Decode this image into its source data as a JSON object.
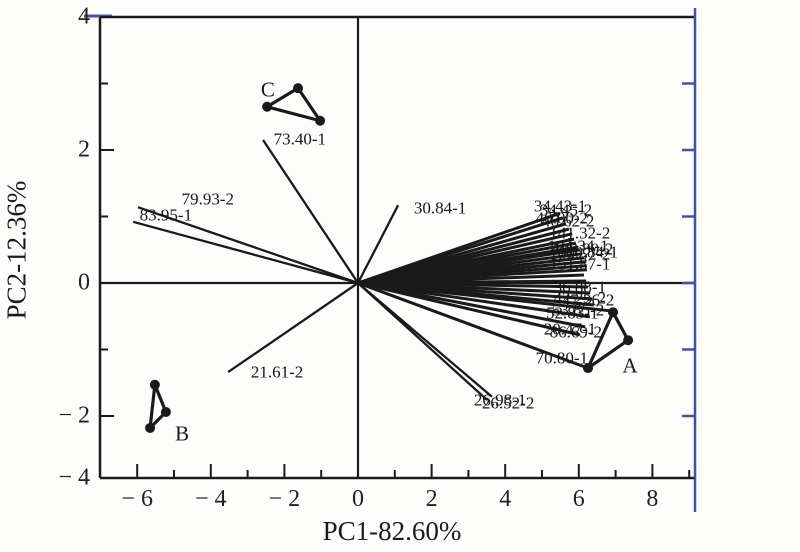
{
  "figure": {
    "colors": {
      "ink": "#1a1a1a",
      "accent_blue": "#3a55a4",
      "background": "#fdfdfc"
    },
    "axes": {
      "x": {
        "title": "PC1-82.60%",
        "ticks": [
          {
            "label": "− 6",
            "value": -6
          },
          {
            "label": "− 4",
            "value": -4
          },
          {
            "label": "− 2",
            "value": -2
          },
          {
            "label": "0",
            "value": 0
          },
          {
            "label": "2",
            "value": 2
          },
          {
            "label": "4",
            "value": 4
          },
          {
            "label": "6",
            "value": 6
          },
          {
            "label": "8",
            "value": 8
          }
        ],
        "minor_ticks": [
          -5,
          -3,
          -1,
          1,
          3,
          5,
          7,
          9
        ]
      },
      "y": {
        "title": "PC2-12.36%",
        "ticks": [
          {
            "label": "4",
            "value": 4
          },
          {
            "label": "2",
            "value": 2
          },
          {
            "label": "0",
            "value": 0
          },
          {
            "label": "− 2",
            "value": -2
          },
          {
            "label": "− 4",
            "value": -4
          }
        ],
        "minor_ticks": [
          3,
          1,
          -1,
          -3
        ]
      }
    }
  },
  "chart_data": {
    "type": "scatter",
    "subtype": "pca-biplot",
    "xlabel": "PC1-82.60%",
    "ylabel": "PC2-12.36%",
    "xlim": [
      -7.2,
      9.2
    ],
    "ylim": [
      -4,
      4
    ],
    "grid": false,
    "vectors": [
      [
        -5.98,
        1.14
      ],
      [
        -6.11,
        0.92
      ],
      [
        -2.58,
        2.15
      ],
      [
        1.09,
        1.17
      ],
      [
        -3.53,
        -1.34
      ],
      [
        3.51,
        -1.76
      ],
      [
        3.64,
        -1.71
      ],
      [
        5.49,
        1.05
      ],
      [
        5.57,
        0.98
      ],
      [
        5.65,
        0.89
      ],
      [
        5.73,
        0.81
      ],
      [
        5.82,
        0.74
      ],
      [
        5.87,
        0.66
      ],
      [
        5.92,
        0.6
      ],
      [
        5.98,
        0.54
      ],
      [
        6.03,
        0.5
      ],
      [
        6.09,
        0.44
      ],
      [
        6.14,
        0.38
      ],
      [
        6.17,
        0.32
      ],
      [
        6.2,
        0.26
      ],
      [
        6.22,
        0.2
      ],
      [
        6.14,
        0.12
      ],
      [
        6.2,
        0.03
      ],
      [
        6.25,
        -0.06
      ],
      [
        6.3,
        -0.15
      ],
      [
        6.36,
        -0.24
      ],
      [
        6.41,
        -0.33
      ],
      [
        6.88,
        -0.42
      ],
      [
        6.3,
        -0.51
      ],
      [
        6.17,
        -0.66
      ],
      [
        6.03,
        -0.78
      ],
      [
        6.25,
        -1.28
      ]
    ],
    "vector_labels": [
      {
        "text": "79.93-2",
        "x": -4.08,
        "y": 1.26
      },
      {
        "text": "83.95-1",
        "x": -5.22,
        "y": 1.02
      },
      {
        "text": "73.40-1",
        "x": -1.58,
        "y": 2.17
      },
      {
        "text": "30.84-1",
        "x": 2.23,
        "y": 1.13
      },
      {
        "text": "21.61-2",
        "x": -2.2,
        "y": -1.34
      },
      {
        "text": "26.98-1",
        "x": 3.86,
        "y": -1.76
      },
      {
        "text": "26.52-2",
        "x": 4.08,
        "y": -1.8
      },
      {
        "text": "70.80-1",
        "x": 5.54,
        "y": -1.13
      },
      {
        "text": "34.43-1",
        "x": 5.49,
        "y": 1.16
      },
      {
        "text": "34.45-2",
        "x": 5.65,
        "y": 1.1
      },
      {
        "text": "40.00-2",
        "x": 5.54,
        "y": 0.98
      },
      {
        "text": "46.62-2",
        "x": 5.71,
        "y": 0.93
      },
      {
        "text": "141.32-2",
        "x": 6.03,
        "y": 0.75
      },
      {
        "text": "104.34-1",
        "x": 5.98,
        "y": 0.56
      },
      {
        "text": "108.80-2",
        "x": 6.11,
        "y": 0.51
      },
      {
        "text": "110.84-1",
        "x": 6.25,
        "y": 0.47
      },
      {
        "text": "100.57-2",
        "x": 6.03,
        "y": 0.44
      },
      {
        "text": "151.87-1",
        "x": 6.03,
        "y": 0.29
      },
      {
        "text": "36.88-1",
        "x": 6.03,
        "y": -0.06
      },
      {
        "text": "42.25-2",
        "x": 6.03,
        "y": -0.23
      },
      {
        "text": "47.26-2",
        "x": 6.25,
        "y": -0.26
      },
      {
        "text": "53.85-2",
        "x": 5.98,
        "y": -0.41
      },
      {
        "text": "52.83-1",
        "x": 5.82,
        "y": -0.45
      },
      {
        "text": "20.47-1",
        "x": 5.76,
        "y": -0.69
      },
      {
        "text": "86.69-2",
        "x": 5.92,
        "y": -0.74
      }
    ],
    "clusters": [
      {
        "name": "A",
        "points": [
          [
            6.93,
            -0.44
          ],
          [
            7.34,
            -0.86
          ],
          [
            6.25,
            -1.28
          ]
        ],
        "label_x": 7.39,
        "label_y": -1.25
      },
      {
        "name": "B",
        "points": [
          [
            -5.52,
            -1.53
          ],
          [
            -5.22,
            -1.94
          ],
          [
            -5.65,
            -2.18
          ]
        ],
        "label_x": -4.78,
        "label_y": -2.27
      },
      {
        "name": "C",
        "points": [
          [
            -1.63,
            2.93
          ],
          [
            -2.47,
            2.65
          ],
          [
            -1.03,
            2.44
          ]
        ],
        "label_x": -2.45,
        "label_y": 2.9
      }
    ]
  }
}
